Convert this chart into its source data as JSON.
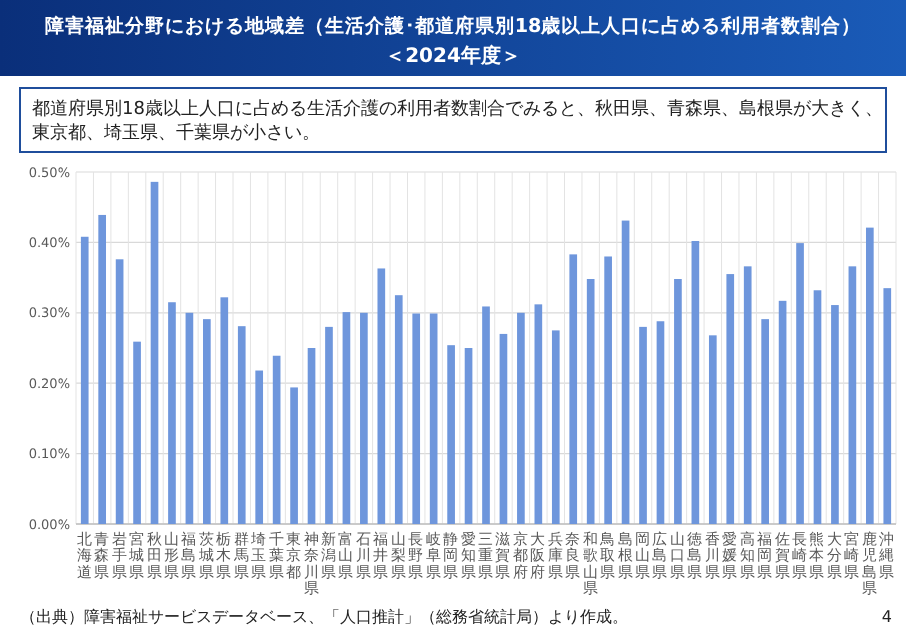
{
  "chart_data": {
    "type": "bar",
    "title": "障害福祉分野における地域差（生活介護･都道府県別18歳以上人口に占める利用者数割合）",
    "subtitle": "＜2024年度＞",
    "annotations": [
      "都道府県別18歳以上人口に占める生活介護の利用者数割合でみると、秋田県、青森県、島根県が大きく、東京都、埼玉県、千葉県が小さい。",
      "（出典）障害福祉サービスデータベース、「人口推計」（総務省統計局）より作成。",
      "4"
    ],
    "categories": [
      "北海道",
      "青森県",
      "岩手県",
      "宮城県",
      "秋田県",
      "山形県",
      "福島県",
      "茨城県",
      "栃木県",
      "群馬県",
      "埼玉県",
      "千葉県",
      "東京都",
      "神奈川県",
      "新潟県",
      "富山県",
      "石川県",
      "福井県",
      "山梨県",
      "長野県",
      "岐阜県",
      "静岡県",
      "愛知県",
      "三重県",
      "滋賀県",
      "京都府",
      "大阪府",
      "兵庫県",
      "奈良県",
      "和歌山県",
      "鳥取県",
      "島根県",
      "岡山県",
      "広島県",
      "山口県",
      "徳島県",
      "香川県",
      "愛媛県",
      "高知県",
      "福岡県",
      "佐賀県",
      "長崎県",
      "熊本県",
      "大分県",
      "宮崎県",
      "鹿児島県",
      "沖縄県"
    ],
    "values": [
      0.408,
      0.439,
      0.376,
      0.259,
      0.486,
      0.315,
      0.3,
      0.291,
      0.322,
      0.281,
      0.218,
      0.239,
      0.194,
      0.25,
      0.28,
      0.301,
      0.3,
      0.363,
      0.325,
      0.299,
      0.299,
      0.254,
      0.25,
      0.309,
      0.27,
      0.3,
      0.312,
      0.275,
      0.383,
      0.348,
      0.38,
      0.431,
      0.28,
      0.288,
      0.348,
      0.402,
      0.268,
      0.355,
      0.366,
      0.291,
      0.317,
      0.399,
      0.332,
      0.311,
      0.366,
      0.421,
      0.335
    ],
    "color": "#6e96dc",
    "ylim": [
      0,
      0.5
    ],
    "yticks": [
      {
        "value": 0,
        "label": "0.00%"
      },
      {
        "value": 0.1,
        "label": "0.10%"
      },
      {
        "value": 0.2,
        "label": "0.20%"
      },
      {
        "value": 0.3,
        "label": "0.30%"
      },
      {
        "value": 0.4,
        "label": "0.40%"
      },
      {
        "value": 0.5,
        "label": "0.50%"
      }
    ],
    "grid": true
  }
}
